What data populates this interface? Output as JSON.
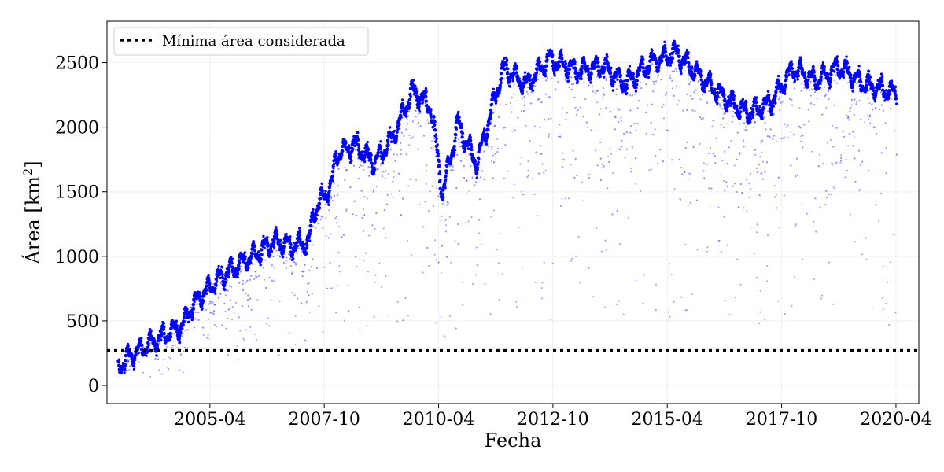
{
  "chart_data": {
    "type": "scatter",
    "title": "",
    "xlabel": "Fecha",
    "ylabel": "Área [km²]",
    "ylabel_base": "Área [km",
    "ylabel_sup": "2",
    "ylabel_end": "]",
    "x_range": [
      "2003-01",
      "2020-10"
    ],
    "ylim": [
      -140,
      2820
    ],
    "x_ticks": [
      "2005-04",
      "2007-10",
      "2010-04",
      "2012-10",
      "2015-04",
      "2017-10",
      "2020-04"
    ],
    "y_ticks": [
      0,
      500,
      1000,
      1500,
      2000,
      2500
    ],
    "grid": true,
    "legend_position": "top-left",
    "colors": {
      "series": "#0000ff",
      "threshold": "#000000"
    },
    "series": [
      {
        "marker": "dot",
        "trend": [
          [
            "2003-04",
            150
          ],
          [
            "2003-08",
            250
          ],
          [
            "2004-01",
            340
          ],
          [
            "2004-06",
            420
          ],
          [
            "2004-09",
            460
          ],
          [
            "2004-10",
            560
          ],
          [
            "2005-01",
            680
          ],
          [
            "2005-06",
            820
          ],
          [
            "2005-11",
            930
          ],
          [
            "2006-04",
            1020
          ],
          [
            "2006-09",
            1120
          ],
          [
            "2007-01",
            1080
          ],
          [
            "2007-06",
            1110
          ],
          [
            "2007-07",
            1320
          ],
          [
            "2007-09",
            1430
          ],
          [
            "2007-12",
            1560
          ],
          [
            "2008-01",
            1780
          ],
          [
            "2008-06",
            1870
          ],
          [
            "2008-11",
            1720
          ],
          [
            "2009-04",
            1920
          ],
          [
            "2009-09",
            2280
          ],
          [
            "2010-02",
            2150
          ],
          [
            "2010-05",
            1480
          ],
          [
            "2010-09",
            2030
          ],
          [
            "2011-02",
            1710
          ],
          [
            "2011-06",
            2150
          ],
          [
            "2011-09",
            2460
          ],
          [
            "2012-03",
            2330
          ],
          [
            "2012-09",
            2530
          ],
          [
            "2013-04",
            2440
          ],
          [
            "2013-11",
            2470
          ],
          [
            "2014-05",
            2340
          ],
          [
            "2014-12",
            2500
          ],
          [
            "2015-06",
            2580
          ],
          [
            "2016-01",
            2380
          ],
          [
            "2016-07",
            2230
          ],
          [
            "2017-01",
            2110
          ],
          [
            "2017-07",
            2190
          ],
          [
            "2018-01",
            2460
          ],
          [
            "2018-07",
            2360
          ],
          [
            "2019-01",
            2470
          ],
          [
            "2019-07",
            2340
          ],
          [
            "2020-04",
            2260
          ]
        ]
      }
    ],
    "threshold": {
      "label": "Mínima área considerada",
      "y": 270
    }
  }
}
